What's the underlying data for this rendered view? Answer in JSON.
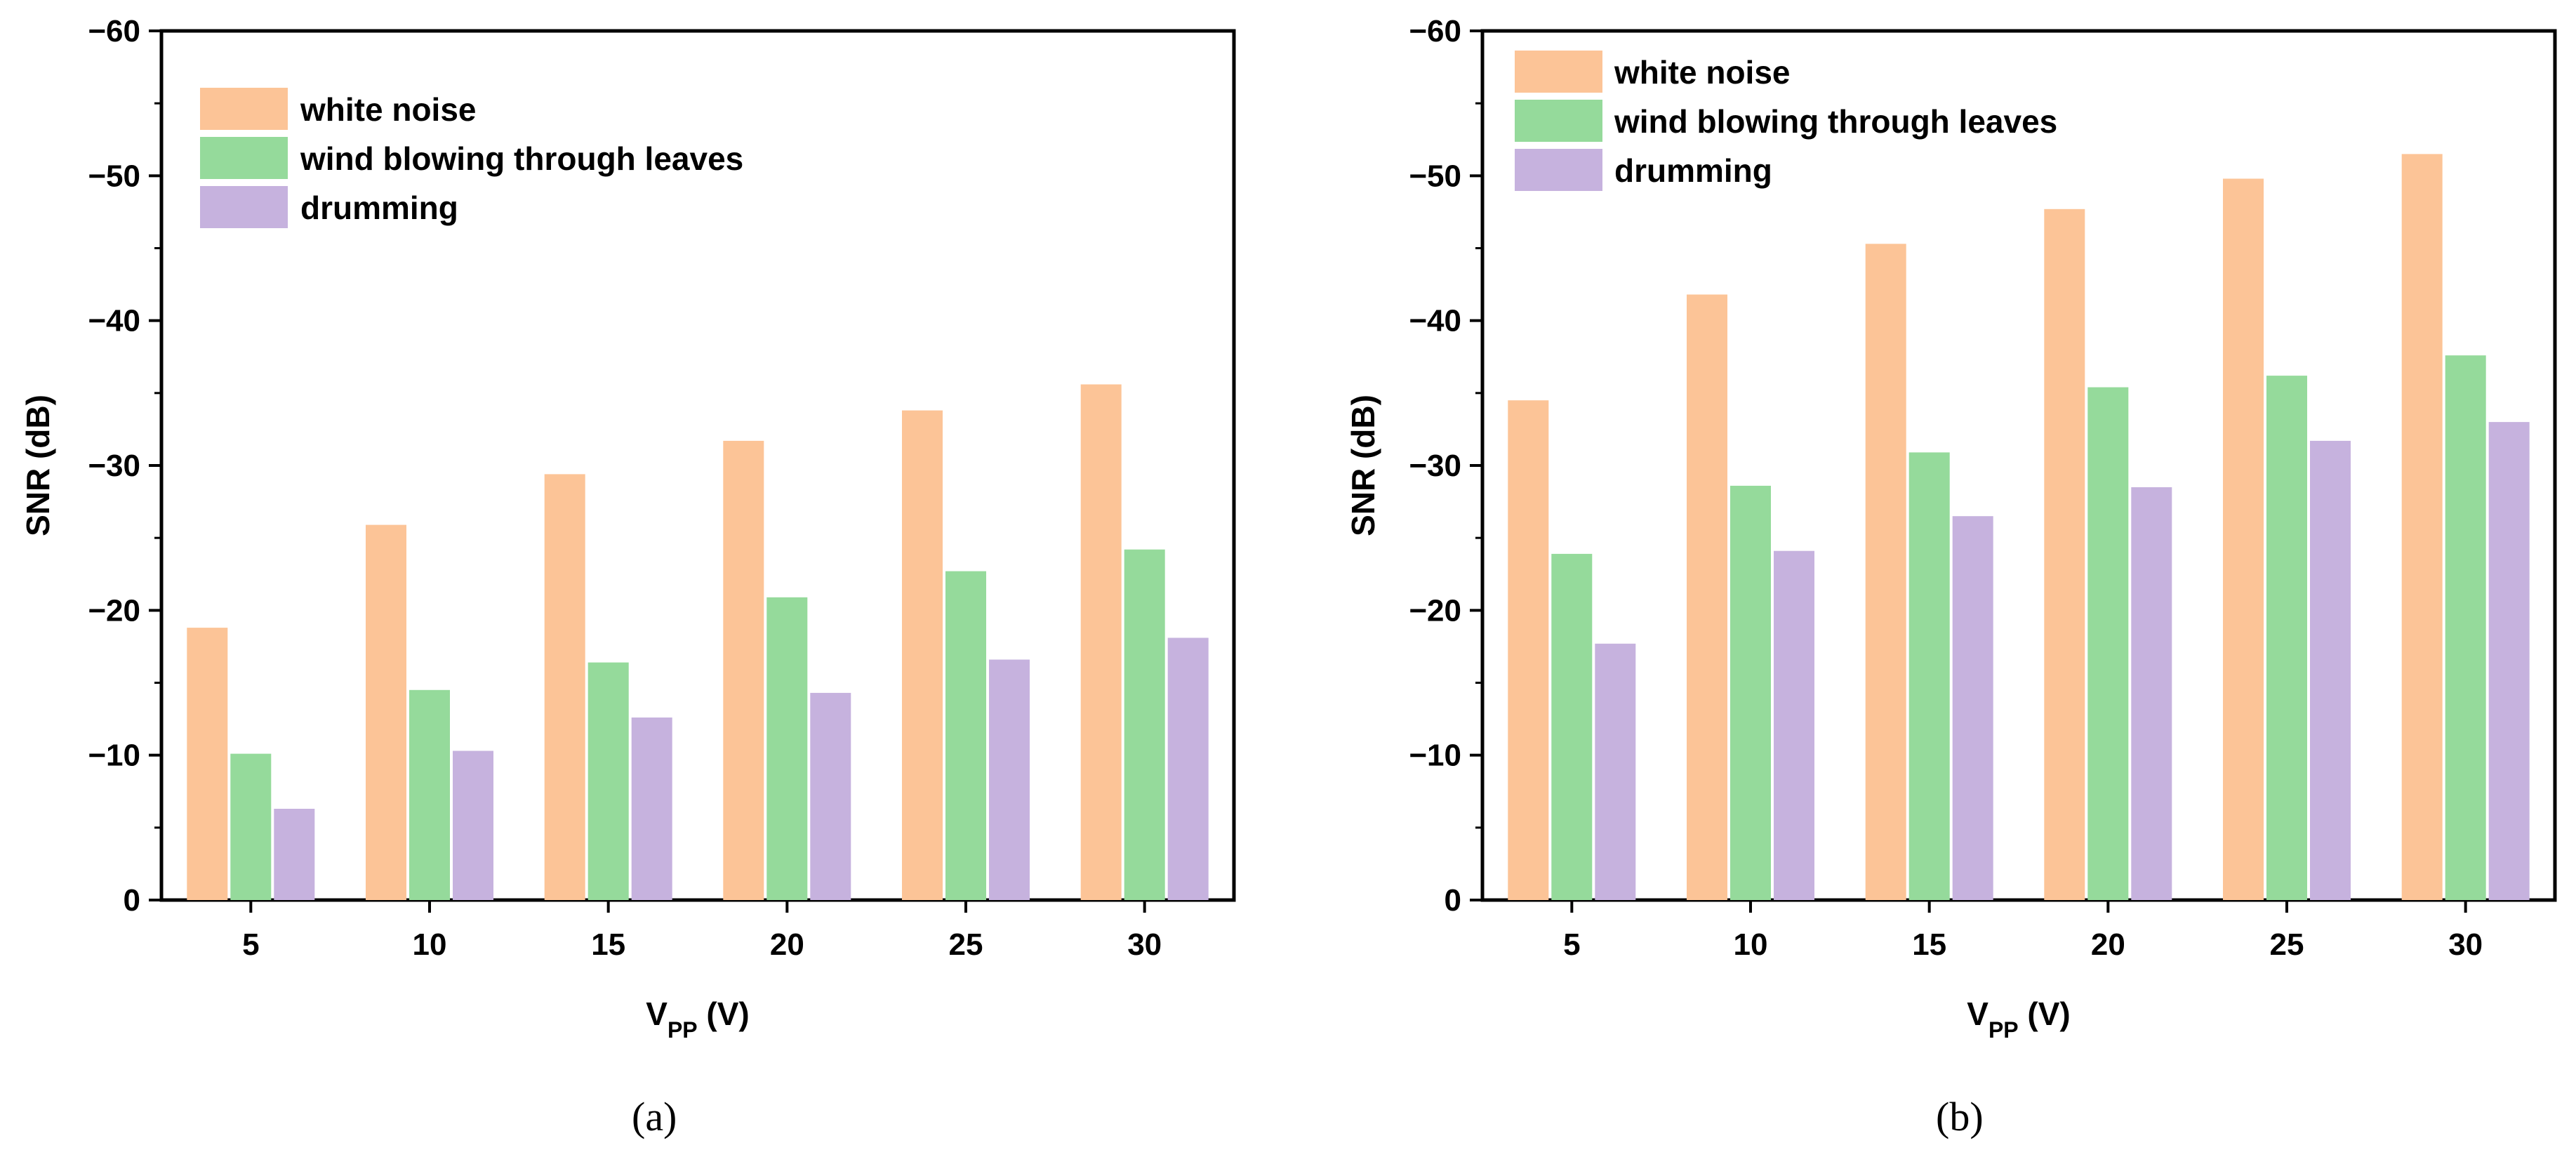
{
  "colors": {
    "white_noise": "#fcc497",
    "wind": "#95da9b",
    "drumming": "#c6b2de",
    "axis": "#000000"
  },
  "chart_data": [
    {
      "type": "bar",
      "panel_label": "(a)",
      "categories": [
        "5",
        "10",
        "15",
        "20",
        "25",
        "30"
      ],
      "series": [
        {
          "name": "white noise",
          "values": [
            -18.8,
            -25.9,
            -29.4,
            -31.7,
            -33.8,
            -35.6
          ]
        },
        {
          "name": "wind blowing through leaves",
          "values": [
            -10.1,
            -14.5,
            -16.4,
            -20.9,
            -22.7,
            -24.2
          ]
        },
        {
          "name": "drumming",
          "values": [
            -6.3,
            -10.3,
            -12.6,
            -14.3,
            -16.6,
            -18.1
          ]
        }
      ],
      "xlabel": {
        "main": "V",
        "sub": "PP",
        "suffix": " (V)"
      },
      "ylabel": "SNR (dB)",
      "ylim": [
        0,
        -60
      ],
      "yticks": [
        {
          "value": 0,
          "label": "0"
        },
        {
          "value": -10,
          "label": "−10"
        },
        {
          "value": -20,
          "label": "−20"
        },
        {
          "value": -30,
          "label": "−30"
        },
        {
          "value": -40,
          "label": "−40"
        },
        {
          "value": -50,
          "label": "−50"
        },
        {
          "value": -60,
          "label": "−60"
        }
      ],
      "grid": false,
      "legend_position": "top-left"
    },
    {
      "type": "bar",
      "panel_label": "(b)",
      "categories": [
        "5",
        "10",
        "15",
        "20",
        "25",
        "30"
      ],
      "series": [
        {
          "name": "white noise",
          "values": [
            -34.5,
            -41.8,
            -45.3,
            -47.7,
            -49.8,
            -51.5
          ]
        },
        {
          "name": "wind blowing through leaves",
          "values": [
            -23.9,
            -28.6,
            -30.9,
            -35.4,
            -36.2,
            -37.6
          ]
        },
        {
          "name": "drumming",
          "values": [
            -17.7,
            -24.1,
            -26.5,
            -28.5,
            -31.7,
            -33.0
          ]
        }
      ],
      "xlabel": {
        "main": "V",
        "sub": "PP",
        "suffix": " (V)"
      },
      "ylabel": "SNR (dB)",
      "ylim": [
        0,
        -60
      ],
      "yticks": [
        {
          "value": 0,
          "label": "0"
        },
        {
          "value": -10,
          "label": "−10"
        },
        {
          "value": -20,
          "label": "−20"
        },
        {
          "value": -30,
          "label": "−30"
        },
        {
          "value": -40,
          "label": "−40"
        },
        {
          "value": -50,
          "label": "−50"
        },
        {
          "value": -60,
          "label": "−60"
        }
      ],
      "grid": false,
      "legend_position": "top-left"
    }
  ]
}
